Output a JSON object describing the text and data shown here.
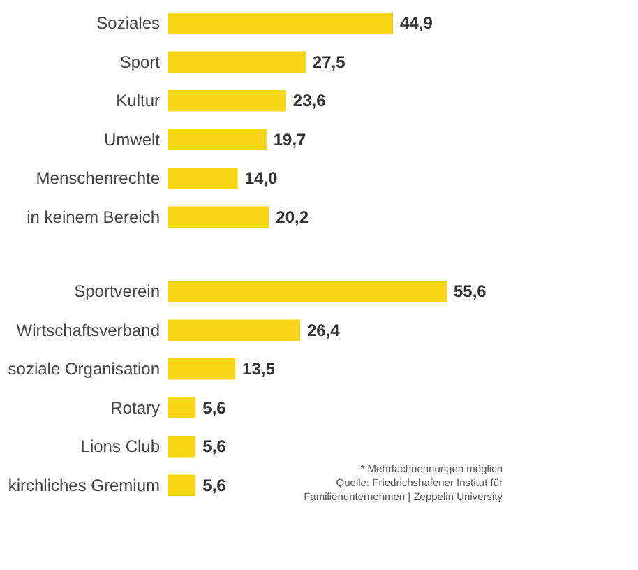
{
  "chart_data": [
    {
      "type": "bar",
      "orientation": "horizontal",
      "color": "#f7d617",
      "categories": [
        "Soziales",
        "Sport",
        "Kultur",
        "Umwelt",
        "Menschenrechte",
        "in keinem Bereich"
      ],
      "values": [
        44.9,
        27.5,
        23.6,
        19.7,
        14.0,
        20.2
      ],
      "value_labels": [
        "44,9",
        "27,5",
        "23,6",
        "19,7",
        "14,0",
        "20,2"
      ],
      "tick_labels": "y"
    },
    {
      "type": "bar",
      "orientation": "horizontal",
      "color": "#f7d617",
      "categories": [
        "Sportverein",
        "Wirtschaftsverband",
        "soziale Organisation",
        "Rotary",
        "Lions Club",
        "kirchliches Gremium"
      ],
      "values": [
        55.6,
        26.4,
        13.5,
        5.6,
        5.6,
        5.6
      ],
      "value_labels": [
        "55,6",
        "26,4",
        "13,5",
        "5,6",
        "5,6",
        "5,6"
      ],
      "tick_labels": "y",
      "annotations": [
        "* Mehrfachnennungen möglich",
        "Quelle: Friedrichshafener Institut für",
        "Familienunternehmen | Zeppelin University"
      ]
    }
  ]
}
